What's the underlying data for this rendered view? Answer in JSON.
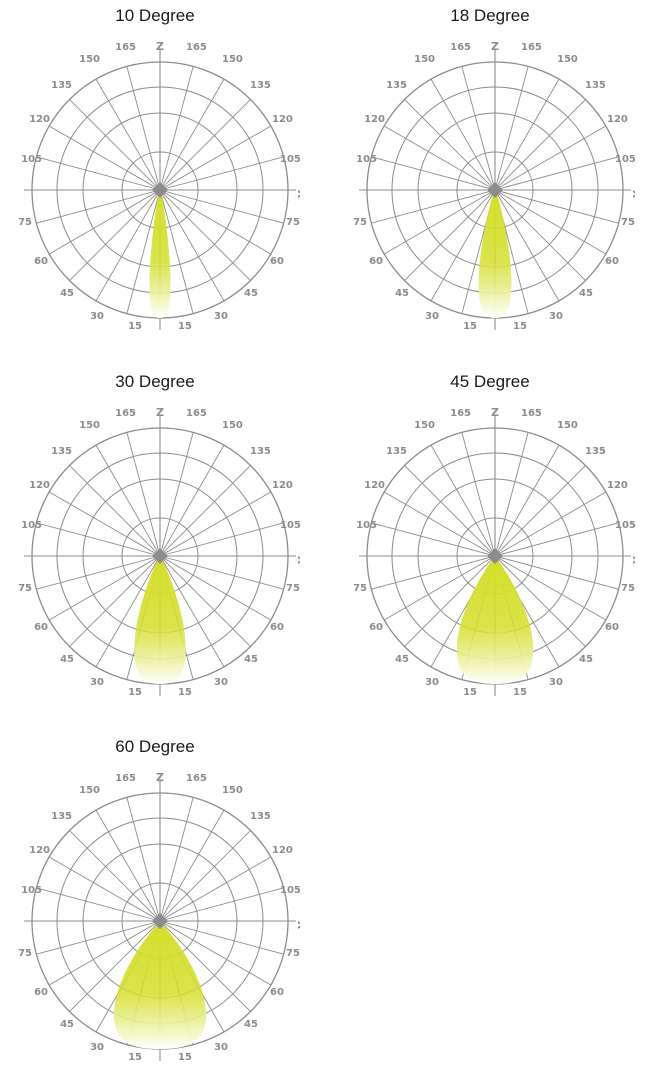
{
  "diagrams": [
    {
      "title": "10 Degree",
      "beam_angle": 10
    },
    {
      "title": "18 Degree",
      "beam_angle": 18
    },
    {
      "title": "30 Degree",
      "beam_angle": 30
    },
    {
      "title": "45 Degree",
      "beam_angle": 45
    },
    {
      "title": "60 Degree",
      "beam_angle": 60
    }
  ],
  "axis_labels": {
    "vertical": "Z",
    "horizontal": "X"
  },
  "angle_ticks": {
    "upper_left": [
      "165",
      "150",
      "135",
      "120",
      "105"
    ],
    "upper_right": [
      "165",
      "150",
      "135",
      "120",
      "105"
    ],
    "lower_left": [
      "75",
      "60",
      "45",
      "30",
      "15"
    ],
    "lower_right": [
      "75",
      "60",
      "45",
      "30",
      "15"
    ]
  },
  "colors": {
    "grid": "#8c8c8c",
    "beam": "#d4df2a",
    "beam_fade": "#ffffff",
    "title": "#1a1a1a"
  }
}
